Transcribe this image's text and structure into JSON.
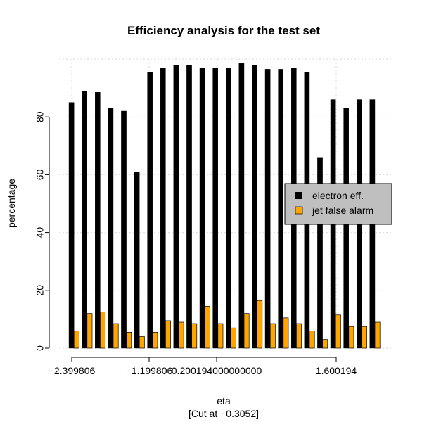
{
  "chart_data": {
    "type": "bar",
    "title": "Efficiency analysis for the test set",
    "xlabel": "eta",
    "subtitle": "[Cut at −0.3052]",
    "ylabel": "percentage",
    "categories": [
      "",
      "",
      "",
      "",
      "",
      "",
      "",
      "",
      "",
      "",
      "",
      "",
      "",
      "",
      "",
      "",
      "",
      "",
      "",
      "",
      "",
      "",
      "",
      ""
    ],
    "x_tick_labels": [
      "−2.399806",
      "−1.199806",
      "0.200194000000000",
      "1.600194"
    ],
    "y_ticks": [
      0,
      20,
      40,
      60,
      80
    ],
    "ylim": [
      0,
      100
    ],
    "grid": true,
    "legend_position": "right",
    "series": [
      {
        "name": "electron eff.",
        "color": "#000000",
        "values": [
          85,
          89,
          88.5,
          83,
          82,
          61,
          95.5,
          97,
          98,
          98,
          97,
          97,
          97,
          98.5,
          98,
          96.5,
          96.5,
          97,
          95.5,
          66,
          86,
          83,
          86,
          86
        ]
      },
      {
        "name": "jet false alarm",
        "color": "#ffa500",
        "values": [
          6,
          12,
          12.5,
          8.5,
          5.5,
          4,
          5.5,
          9.5,
          9,
          8.5,
          14.5,
          8.5,
          7,
          12,
          16.5,
          8.5,
          10.5,
          8.5,
          6,
          3,
          11.5,
          7.5,
          7.5,
          9
        ]
      }
    ]
  }
}
